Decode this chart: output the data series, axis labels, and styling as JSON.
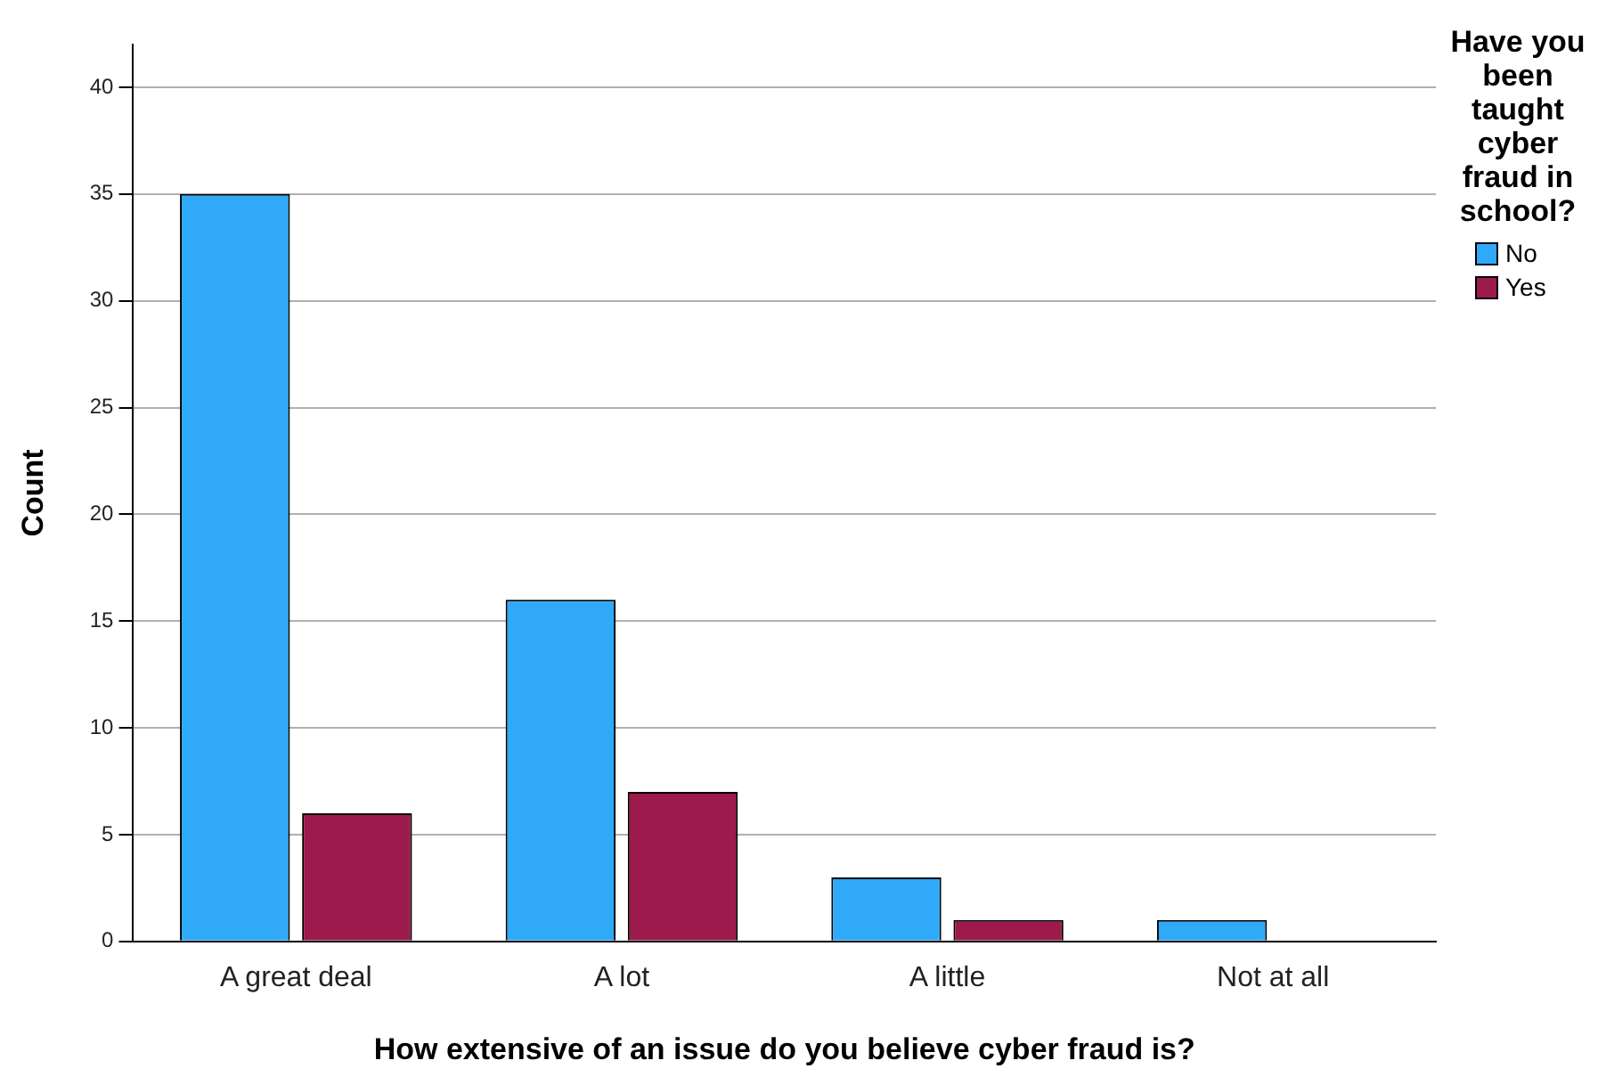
{
  "chart_data": {
    "type": "bar",
    "xlabel": "How extensive of an issue do you believe cyber fraud is?",
    "ylabel": "Count",
    "legend_title": "Have you been taught cyber fraud in school?",
    "legend": "right",
    "grid": "y",
    "categories": [
      "A great deal",
      "A lot",
      "A little",
      "Not at all"
    ],
    "series": [
      {
        "name": "No",
        "color": "#2fa9f8",
        "values": [
          35,
          16,
          3,
          1
        ]
      },
      {
        "name": "Yes",
        "color": "#9c1a4c",
        "values": [
          6,
          7,
          1,
          null
        ]
      }
    ],
    "ylim": [
      0,
      42
    ],
    "yticks": [
      0,
      5,
      10,
      15,
      20,
      25,
      30,
      35,
      40
    ]
  }
}
